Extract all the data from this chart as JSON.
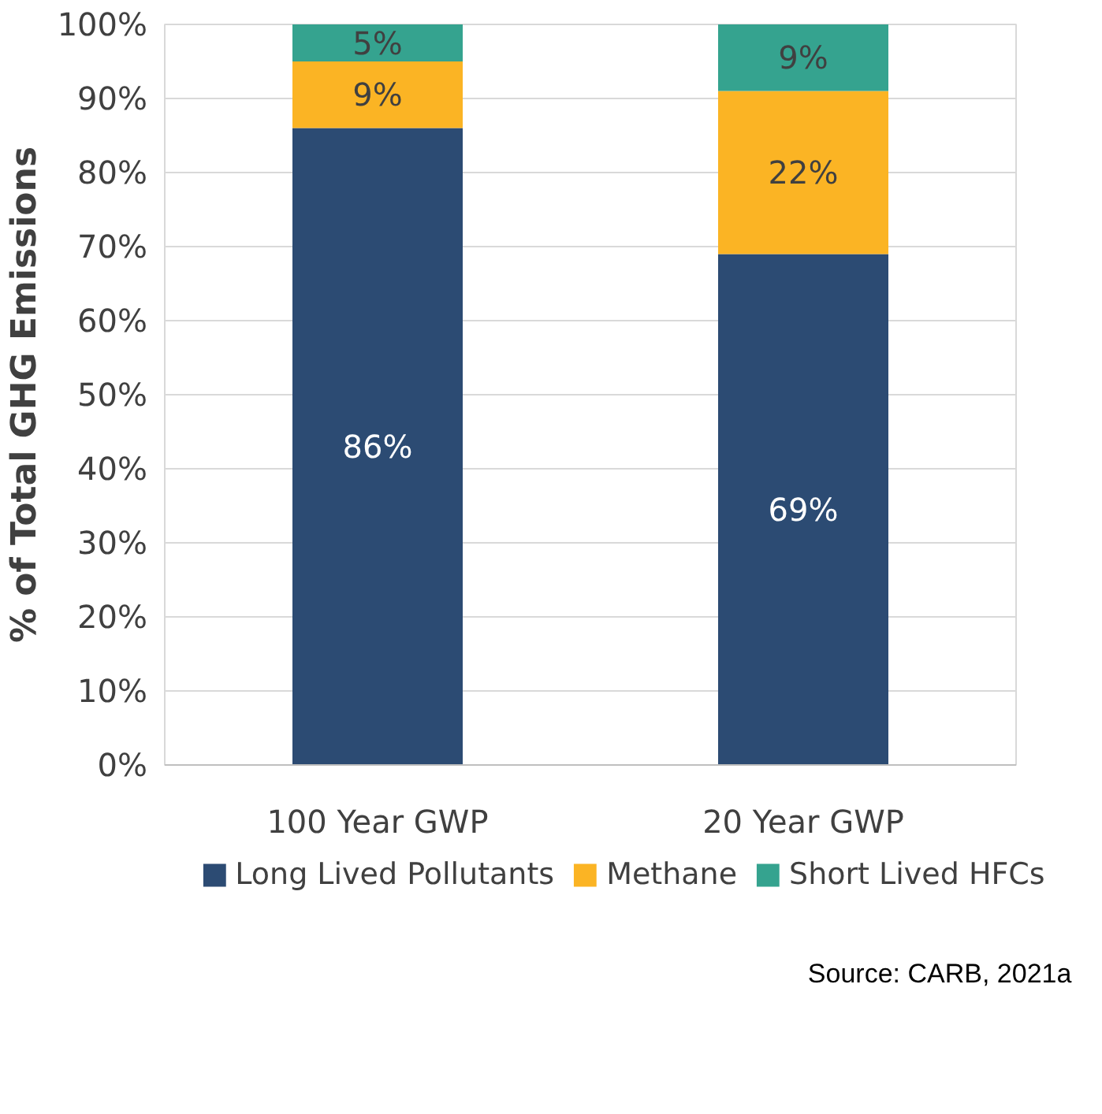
{
  "chart_data": {
    "type": "bar",
    "stacked": true,
    "ylabel": "% of Total GHG Emissions",
    "categories": [
      "100 Year GWP",
      "20 Year GWP"
    ],
    "series": [
      {
        "name": "Long Lived Pollutants",
        "color": "#2c4b73",
        "values": [
          86,
          69
        ],
        "value_labels": [
          "86%",
          "69%"
        ]
      },
      {
        "name": "Methane",
        "color": "#fbb424",
        "values": [
          9,
          22
        ],
        "value_labels": [
          "9%",
          "22%"
        ]
      },
      {
        "name": "Short Lived HFCs",
        "color": "#35a38f",
        "values": [
          5,
          9
        ],
        "value_labels": [
          "5%",
          "9%"
        ]
      }
    ],
    "ylim": [
      0,
      100
    ],
    "yticks": [
      {
        "value": 0,
        "label": "0%"
      },
      {
        "value": 10,
        "label": "10%"
      },
      {
        "value": 20,
        "label": "20%"
      },
      {
        "value": 30,
        "label": "30%"
      },
      {
        "value": 40,
        "label": "40%"
      },
      {
        "value": 50,
        "label": "50%"
      },
      {
        "value": 60,
        "label": "60%"
      },
      {
        "value": 70,
        "label": "70%"
      },
      {
        "value": 80,
        "label": "80%"
      },
      {
        "value": 90,
        "label": "90%"
      },
      {
        "value": 100,
        "label": "100%"
      }
    ],
    "grid": "y",
    "legend": "bottom",
    "annotations": [
      "Source: CARB, 2021a"
    ]
  }
}
